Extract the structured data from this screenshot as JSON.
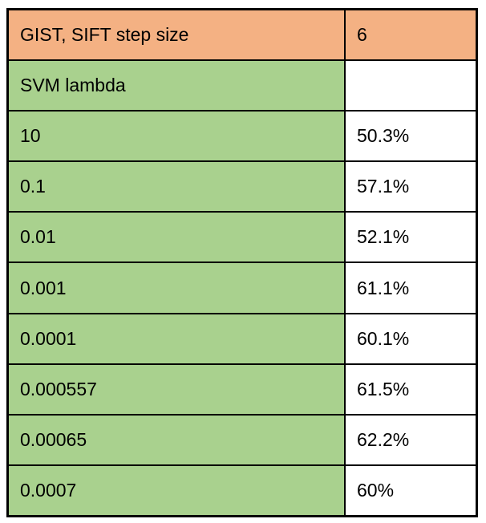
{
  "table": {
    "header_row": {
      "label": "GIST, SIFT step size",
      "value": "6"
    },
    "section_row": {
      "label": "SVM lambda",
      "value": ""
    },
    "data_rows": [
      {
        "lambda": "10",
        "accuracy": "50.3%"
      },
      {
        "lambda": "0.1",
        "accuracy": "57.1%"
      },
      {
        "lambda": "0.01",
        "accuracy": "52.1%"
      },
      {
        "lambda": "0.001",
        "accuracy": "61.1%"
      },
      {
        "lambda": "0.0001",
        "accuracy": "60.1%"
      },
      {
        "lambda": "0.000557",
        "accuracy": "61.5%"
      },
      {
        "lambda": "0.00065",
        "accuracy": "62.2%"
      },
      {
        "lambda": "0.0007",
        "accuracy": "60%"
      }
    ]
  },
  "colors": {
    "header_bg": "#F4B183",
    "param_bg": "#A9D18E",
    "value_bg": "#FFFFFF",
    "border": "#000000",
    "text": "#000000"
  },
  "chart_data": {
    "type": "table",
    "columns": [
      "GIST, SIFT step size",
      "6"
    ],
    "rows": [
      [
        "SVM lambda",
        ""
      ],
      [
        "10",
        "50.3%"
      ],
      [
        "0.1",
        "57.1%"
      ],
      [
        "0.01",
        "52.1%"
      ],
      [
        "0.001",
        "61.1%"
      ],
      [
        "0.0001",
        "60.1%"
      ],
      [
        "0.000557",
        "61.5%"
      ],
      [
        "0.00065",
        "62.2%"
      ],
      [
        "0.0007",
        "60%"
      ]
    ]
  }
}
